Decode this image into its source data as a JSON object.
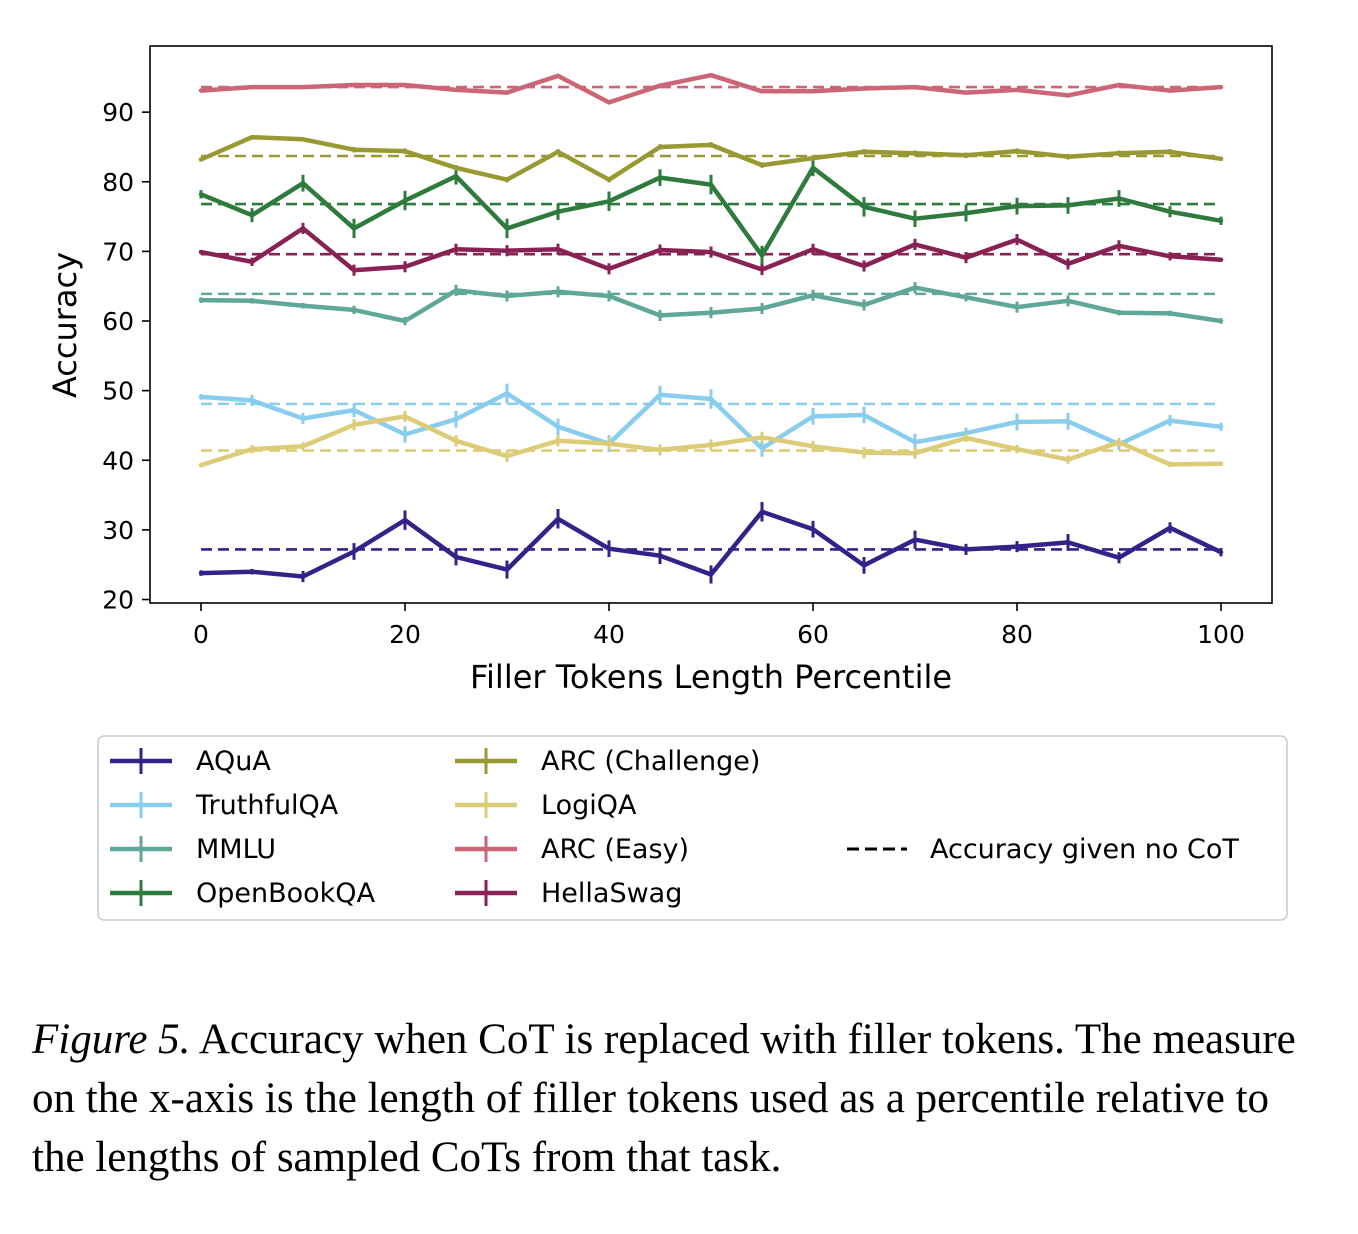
{
  "chart_data": {
    "type": "line",
    "title": "",
    "xlabel": "Filler Tokens Length Percentile",
    "ylabel": "Accuracy",
    "xlim": [
      -5,
      105
    ],
    "ylim": [
      19.5,
      99.5
    ],
    "xticks": [
      0,
      20,
      40,
      60,
      80,
      100
    ],
    "yticks": [
      20,
      30,
      40,
      50,
      60,
      70,
      80,
      90
    ],
    "x": [
      0,
      5,
      10,
      15,
      20,
      25,
      30,
      35,
      40,
      45,
      50,
      55,
      60,
      65,
      70,
      75,
      80,
      85,
      90,
      95,
      100
    ],
    "series": [
      {
        "name": "AQuA",
        "color": "#332288",
        "baseline": 27.2,
        "values": [
          23.8,
          24.0,
          23.3,
          26.9,
          31.4,
          26.1,
          24.3,
          31.6,
          27.3,
          26.3,
          23.6,
          32.6,
          30.1,
          24.9,
          28.6,
          27.2,
          27.6,
          28.2,
          26.0,
          30.3,
          26.8
        ],
        "errors": [
          0.4,
          0.4,
          0.8,
          1.2,
          1.4,
          1.2,
          1.3,
          1.4,
          1.2,
          1.2,
          1.3,
          1.4,
          1.2,
          1.2,
          1.3,
          0.8,
          0.8,
          1.2,
          0.8,
          0.8,
          0.6
        ]
      },
      {
        "name": "TruthfulQA",
        "color": "#88ccee",
        "baseline": 48.1,
        "values": [
          49.1,
          48.6,
          46.0,
          47.2,
          43.7,
          45.9,
          49.6,
          44.8,
          42.4,
          49.4,
          48.8,
          41.7,
          46.3,
          46.5,
          42.6,
          43.9,
          45.5,
          45.6,
          42.3,
          45.7,
          44.8
        ],
        "errors": [
          0.4,
          0.8,
          0.8,
          1.0,
          1.2,
          1.2,
          1.4,
          1.2,
          1.2,
          1.3,
          1.4,
          1.2,
          1.2,
          1.2,
          1.2,
          0.8,
          1.2,
          1.2,
          0.8,
          0.8,
          0.6
        ]
      },
      {
        "name": "MMLU",
        "color": "#5fa898",
        "baseline": 63.9,
        "values": [
          63.0,
          62.9,
          62.2,
          61.6,
          60.0,
          64.4,
          63.6,
          64.2,
          63.6,
          60.8,
          61.2,
          61.8,
          63.7,
          62.3,
          64.8,
          63.4,
          62.0,
          62.9,
          61.2,
          61.1,
          60.0
        ],
        "errors": [
          0.4,
          0.4,
          0.4,
          0.6,
          0.6,
          0.8,
          0.8,
          0.8,
          0.8,
          0.8,
          0.8,
          0.8,
          0.8,
          0.8,
          0.8,
          0.6,
          0.8,
          0.8,
          0.4,
          0.4,
          0.4
        ]
      },
      {
        "name": "OpenBookQA",
        "color": "#2f7a3d",
        "baseline": 76.8,
        "values": [
          78.2,
          75.2,
          79.8,
          73.3,
          77.3,
          80.8,
          73.3,
          75.7,
          77.2,
          80.6,
          79.6,
          69.4,
          82.0,
          76.4,
          74.7,
          75.5,
          76.5,
          76.6,
          77.6,
          75.7,
          74.4
        ],
        "errors": [
          0.6,
          1.0,
          1.2,
          1.4,
          1.4,
          1.2,
          1.4,
          1.2,
          1.4,
          1.2,
          1.4,
          1.4,
          1.2,
          1.4,
          1.2,
          1.2,
          1.2,
          1.2,
          1.2,
          0.8,
          0.6
        ]
      },
      {
        "name": "ARC (Challenge)",
        "color": "#999933",
        "baseline": 83.7,
        "values": [
          83.2,
          86.4,
          86.1,
          84.6,
          84.4,
          82.0,
          80.3,
          84.3,
          80.3,
          85.0,
          85.3,
          82.4,
          83.4,
          84.3,
          84.1,
          83.8,
          84.4,
          83.6,
          84.1,
          84.3,
          83.3
        ],
        "errors": [
          0.3,
          0.3,
          0.3,
          0.4,
          0.4,
          0.4,
          0.4,
          0.4,
          0.4,
          0.4,
          0.4,
          0.4,
          0.4,
          0.4,
          0.4,
          0.4,
          0.4,
          0.4,
          0.4,
          0.4,
          0.3
        ]
      },
      {
        "name": "LogiQA",
        "color": "#ddcc77",
        "baseline": 41.4,
        "values": [
          39.3,
          41.6,
          42.0,
          45.1,
          46.3,
          42.8,
          40.6,
          42.8,
          42.4,
          41.5,
          42.2,
          43.3,
          42.0,
          41.1,
          41.0,
          43.2,
          41.6,
          40.1,
          42.6,
          39.4,
          39.5
        ],
        "errors": [
          0.3,
          0.6,
          0.6,
          0.8,
          0.8,
          0.8,
          0.8,
          0.8,
          0.8,
          0.8,
          0.8,
          0.8,
          0.8,
          0.8,
          0.8,
          0.6,
          0.6,
          0.6,
          0.6,
          0.4,
          0.3
        ]
      },
      {
        "name": "ARC (Easy)",
        "color": "#cc6677",
        "baseline": 93.6,
        "values": [
          93.1,
          93.6,
          93.6,
          93.9,
          93.9,
          93.2,
          92.8,
          95.2,
          91.4,
          93.8,
          95.3,
          93.0,
          93.0,
          93.4,
          93.6,
          92.8,
          93.2,
          92.4,
          93.9,
          93.1,
          93.6
        ],
        "errors": [
          0.2,
          0.2,
          0.2,
          0.3,
          0.3,
          0.3,
          0.3,
          0.3,
          0.3,
          0.3,
          0.3,
          0.3,
          0.3,
          0.3,
          0.3,
          0.3,
          0.3,
          0.3,
          0.3,
          0.3,
          0.2
        ]
      },
      {
        "name": "HellaSwag",
        "color": "#882255",
        "baseline": 69.6,
        "values": [
          69.9,
          68.5,
          73.3,
          67.3,
          67.8,
          70.3,
          70.1,
          70.3,
          67.5,
          70.2,
          69.9,
          67.4,
          70.3,
          67.9,
          71.0,
          69.1,
          71.7,
          68.2,
          70.8,
          69.3,
          68.8
        ],
        "errors": [
          0.3,
          0.6,
          0.8,
          0.8,
          0.8,
          0.8,
          0.8,
          0.8,
          0.8,
          0.8,
          0.8,
          0.8,
          0.8,
          0.8,
          0.8,
          0.8,
          0.8,
          0.8,
          0.8,
          0.6,
          0.3
        ]
      }
    ],
    "legend": {
      "placement": "below",
      "baseline_label": "Accuracy given no CoT"
    }
  },
  "caption": {
    "figure_label": "Figure 5.",
    "text": "Accuracy when CoT is replaced with filler tokens. The measure on the x-axis is the length of filler tokens used as a percentile relative to the lengths of sampled CoTs from that task."
  }
}
